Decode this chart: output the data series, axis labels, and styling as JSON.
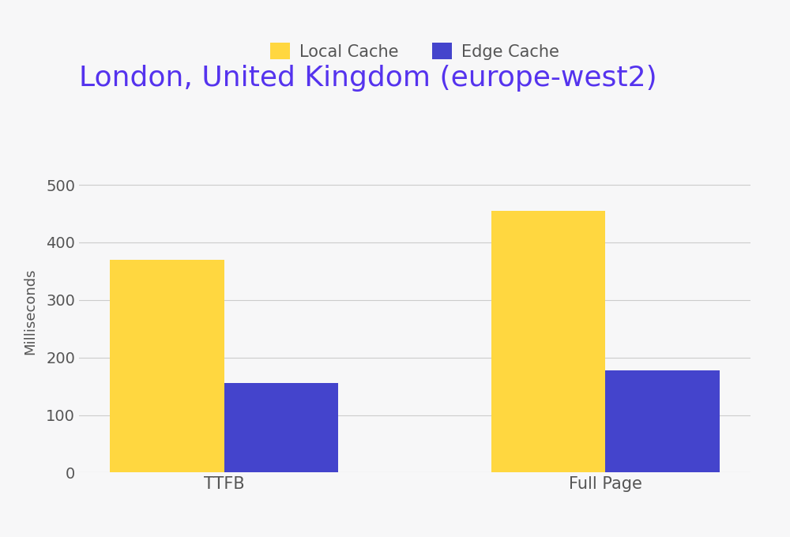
{
  "title": "London, United Kingdom (europe-west2)",
  "title_color": "#5533EE",
  "title_fontsize": 26,
  "ylabel": "Milliseconds",
  "ylabel_fontsize": 13,
  "categories": [
    "TTFB",
    "Full Page"
  ],
  "local_cache_values": [
    370,
    455
  ],
  "edge_cache_values": [
    155,
    178
  ],
  "local_cache_color": "#FFD740",
  "edge_cache_color": "#4444CC",
  "background_color": "#F7F7F8",
  "ylim": [
    0,
    560
  ],
  "yticks": [
    0,
    100,
    200,
    300,
    400,
    500
  ],
  "bar_width": 0.3,
  "legend_labels": [
    "Local Cache",
    "Edge Cache"
  ],
  "tick_fontsize": 14,
  "xtick_fontsize": 15,
  "grid_color": "#CCCCCC",
  "grid_linewidth": 0.8,
  "legend_fontsize": 15,
  "ylabel_color": "#555555",
  "tick_color": "#555555",
  "xtick_color": "#555555"
}
